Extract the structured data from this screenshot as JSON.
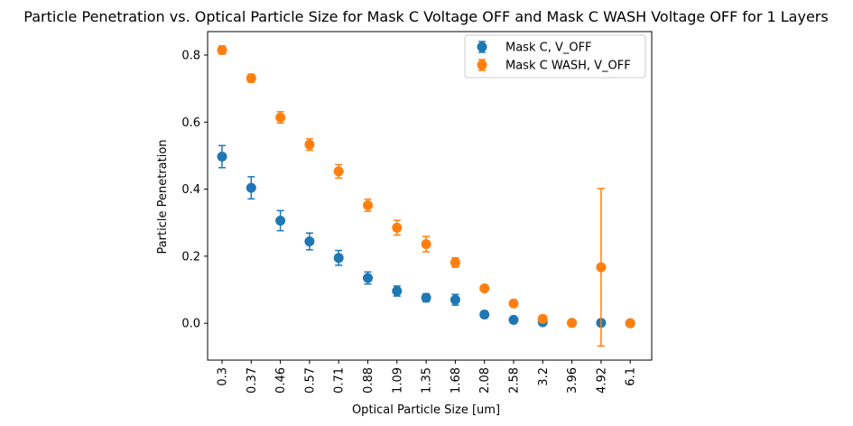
{
  "chart_data": {
    "type": "scatter",
    "title": "Particle Penetration vs. Optical Particle Size for Mask C Voltage OFF and Mask C WASH Voltage OFF for 1 Layers",
    "xlabel": "Optical Particle Size [um]",
    "ylabel": "Particle Penetration",
    "categories": [
      "0.3",
      "0.37",
      "0.46",
      "0.57",
      "0.71",
      "0.88",
      "1.09",
      "1.35",
      "1.68",
      "2.08",
      "2.58",
      "3.2",
      "3.96",
      "4.92",
      "6.1"
    ],
    "ylim": [
      -0.11,
      0.87
    ],
    "yticks": [
      "0.0",
      "0.2",
      "0.4",
      "0.6",
      "0.8"
    ],
    "ytick_values": [
      0.0,
      0.2,
      0.4,
      0.6,
      0.8
    ],
    "grid": false,
    "legend_position": "upper right",
    "series": [
      {
        "name": "Mask C, V_OFF",
        "color": "#1f77b4",
        "values": [
          0.497,
          0.404,
          0.306,
          0.244,
          0.195,
          0.135,
          0.096,
          0.076,
          0.07,
          0.026,
          0.01,
          0.003,
          0.001,
          0.001,
          0.0
        ],
        "errors": [
          0.033,
          0.033,
          0.03,
          0.025,
          0.022,
          0.018,
          0.015,
          0.012,
          0.016,
          0.01,
          0.006,
          0.006,
          0.002,
          0.002,
          0.001
        ]
      },
      {
        "name": "Mask C WASH, V_OFF",
        "color": "#ff7f0e",
        "values": [
          0.815,
          0.731,
          0.614,
          0.533,
          0.453,
          0.352,
          0.285,
          0.236,
          0.181,
          0.104,
          0.059,
          0.013,
          0.001,
          0.167,
          0.0
        ],
        "errors": [
          0.012,
          0.012,
          0.017,
          0.017,
          0.02,
          0.018,
          0.022,
          0.023,
          0.014,
          0.006,
          0.006,
          0.01,
          0.001,
          0.235,
          0.001
        ]
      }
    ]
  }
}
